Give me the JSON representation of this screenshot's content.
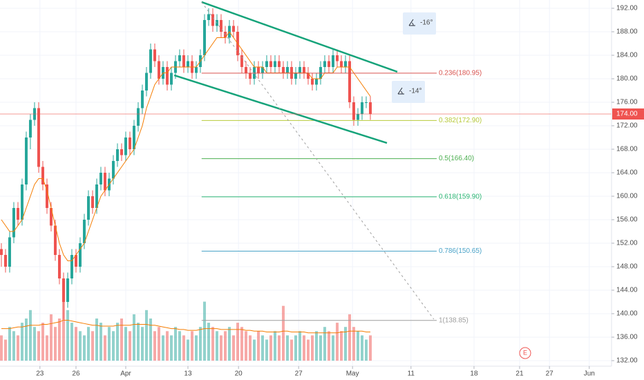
{
  "chart_data": {
    "type": "candlestick",
    "up_color": "#26a69a",
    "down_color": "#ef5350",
    "candles": [
      [
        151,
        152,
        148,
        150
      ],
      [
        150,
        151,
        147,
        148
      ],
      [
        148,
        154,
        147,
        153
      ],
      [
        153,
        159,
        152,
        158
      ],
      [
        158,
        159,
        155,
        156
      ],
      [
        156,
        163,
        155,
        162
      ],
      [
        162,
        171,
        161,
        170
      ],
      [
        170,
        174,
        168,
        173
      ],
      [
        173,
        176,
        172,
        175
      ],
      [
        175,
        176,
        164,
        165
      ],
      [
        165,
        166,
        161,
        162
      ],
      [
        162,
        163,
        157,
        158
      ],
      [
        158,
        159,
        154,
        155
      ],
      [
        155,
        156,
        149,
        150
      ],
      [
        150,
        151,
        145,
        146
      ],
      [
        146,
        147,
        139,
        142
      ],
      [
        142,
        147,
        141,
        146
      ],
      [
        146,
        151,
        145,
        150
      ],
      [
        150,
        151,
        147,
        148
      ],
      [
        148,
        153,
        147,
        152
      ],
      [
        152,
        157,
        151,
        156
      ],
      [
        156,
        161,
        155,
        160
      ],
      [
        160,
        161,
        157,
        158
      ],
      [
        158,
        163,
        157,
        162
      ],
      [
        162,
        165,
        161,
        164
      ],
      [
        164,
        165,
        160,
        161
      ],
      [
        161,
        164,
        160,
        163
      ],
      [
        163,
        167,
        162,
        166
      ],
      [
        166,
        169,
        165,
        168
      ],
      [
        168,
        169,
        166,
        167
      ],
      [
        167,
        171,
        166,
        170
      ],
      [
        170,
        171,
        167,
        168
      ],
      [
        168,
        173,
        167,
        172
      ],
      [
        172,
        176,
        171,
        175
      ],
      [
        175,
        179,
        174,
        178
      ],
      [
        178,
        182,
        177,
        181
      ],
      [
        181,
        186,
        180,
        185
      ],
      [
        185,
        186,
        182,
        183
      ],
      [
        183,
        184,
        179,
        180
      ],
      [
        180,
        183,
        179,
        182
      ],
      [
        182,
        183,
        178,
        179
      ],
      [
        179,
        182,
        178,
        181
      ],
      [
        181,
        184,
        180,
        183
      ],
      [
        183,
        185,
        182,
        184
      ],
      [
        184,
        185,
        181,
        182
      ],
      [
        182,
        184,
        181,
        183
      ],
      [
        183,
        184,
        180,
        181
      ],
      [
        181,
        183,
        180,
        182
      ],
      [
        182,
        185,
        181,
        184
      ],
      [
        184,
        191,
        183,
        190
      ],
      [
        190,
        192,
        189,
        191
      ],
      [
        191,
        192,
        188,
        189
      ],
      [
        189,
        191,
        188,
        190
      ],
      [
        190,
        191,
        187,
        188
      ],
      [
        188,
        189,
        186,
        187
      ],
      [
        187,
        190,
        186,
        189
      ],
      [
        189,
        190,
        187,
        188
      ],
      [
        188,
        189,
        183,
        184
      ],
      [
        184,
        185,
        181,
        182
      ],
      [
        182,
        183,
        180,
        181
      ],
      [
        181,
        182,
        179,
        180
      ],
      [
        180,
        183,
        179,
        182
      ],
      [
        182,
        183,
        180,
        181
      ],
      [
        181,
        183,
        180,
        182
      ],
      [
        182,
        184,
        181,
        183
      ],
      [
        183,
        184,
        181,
        182
      ],
      [
        182,
        184,
        181,
        183
      ],
      [
        183,
        184,
        181,
        182
      ],
      [
        182,
        183,
        180,
        181
      ],
      [
        181,
        183,
        180,
        182
      ],
      [
        182,
        183,
        179,
        180
      ],
      [
        180,
        182,
        179,
        181
      ],
      [
        181,
        183,
        180,
        182
      ],
      [
        182,
        183,
        180,
        181
      ],
      [
        181,
        182,
        179,
        180
      ],
      [
        180,
        181,
        178,
        179
      ],
      [
        179,
        181,
        178,
        180
      ],
      [
        180,
        183,
        179,
        182
      ],
      [
        182,
        184,
        181,
        183
      ],
      [
        183,
        184,
        181,
        182
      ],
      [
        182,
        185,
        181,
        184
      ],
      [
        184,
        185,
        182,
        183
      ],
      [
        183,
        184,
        181,
        182
      ],
      [
        182,
        184,
        181,
        183
      ],
      [
        183,
        184,
        175,
        176
      ],
      [
        176,
        177,
        172,
        173
      ],
      [
        173,
        175,
        172,
        174
      ],
      [
        174,
        177,
        173,
        176
      ],
      [
        176,
        177,
        175,
        176
      ],
      [
        176,
        177,
        173,
        174
      ]
    ],
    "ma": {
      "color": "#f57c00",
      "values": [
        156,
        155,
        154,
        154,
        155,
        156,
        158,
        160,
        162,
        163,
        163,
        161,
        158,
        155,
        152,
        150,
        149,
        149,
        150,
        151,
        152,
        154,
        156,
        158,
        160,
        161,
        162,
        163,
        164,
        165,
        166,
        167,
        168,
        170,
        172,
        175,
        177,
        179,
        180,
        181,
        181,
        182,
        182,
        182,
        182,
        182,
        182,
        182,
        183,
        184,
        185,
        186,
        187,
        187,
        187,
        188,
        187,
        186,
        185,
        184,
        183,
        182,
        182,
        182,
        181,
        181,
        181,
        181,
        181,
        181,
        181,
        181,
        181,
        181,
        181,
        180,
        180,
        180,
        181,
        181,
        181,
        182,
        182,
        182,
        182,
        181,
        180,
        179,
        178,
        177
      ]
    },
    "volume": {
      "ylim": [
        0,
        100
      ],
      "values": [
        30,
        25,
        40,
        35,
        30,
        45,
        50,
        60,
        40,
        35,
        45,
        30,
        55,
        40,
        50,
        90,
        60,
        45,
        40,
        35,
        30,
        40,
        35,
        50,
        45,
        30,
        40,
        35,
        45,
        50,
        40,
        35,
        55,
        45,
        40,
        60,
        50,
        35,
        40,
        30,
        35,
        30,
        40,
        35,
        30,
        25,
        35,
        30,
        40,
        70,
        45,
        40,
        35,
        30,
        35,
        40,
        30,
        45,
        40,
        35,
        30,
        25,
        35,
        30,
        25,
        30,
        35,
        30,
        65,
        30,
        25,
        30,
        35,
        30,
        25,
        30,
        35,
        30,
        40,
        35,
        30,
        45,
        35,
        40,
        55,
        40,
        35,
        30,
        25,
        30
      ]
    },
    "volume_ma": {
      "color": "#f57c00",
      "values": [
        38,
        38,
        38,
        39,
        40,
        40,
        41,
        42,
        42,
        42,
        43,
        43,
        44,
        45,
        46,
        48,
        48,
        47,
        46,
        45,
        44,
        43,
        42,
        42,
        41,
        41,
        41,
        41,
        42,
        42,
        42,
        42,
        43,
        43,
        43,
        43,
        42,
        42,
        41,
        40,
        39,
        38,
        38,
        37,
        37,
        36,
        36,
        36,
        37,
        38,
        38,
        38,
        38,
        37,
        37,
        37,
        37,
        37,
        37,
        36,
        36,
        35,
        35,
        35,
        34,
        34,
        34,
        34,
        35,
        35,
        34,
        34,
        34,
        34,
        33,
        33,
        33,
        33,
        33,
        33,
        33,
        33,
        34,
        34,
        35,
        35,
        35,
        35,
        34,
        34
      ]
    },
    "xlim": [
      -0.33,
      147.17
    ],
    "xticks": [
      {
        "value": 9.3,
        "label": "23"
      },
      {
        "value": 18,
        "label": "26"
      },
      {
        "value": 30,
        "label": "Apr"
      },
      {
        "value": 45,
        "label": "13"
      },
      {
        "value": 57.2,
        "label": "20"
      },
      {
        "value": 71.7,
        "label": "27"
      },
      {
        "value": 84.7,
        "label": "May"
      },
      {
        "value": 98.8,
        "label": "11"
      },
      {
        "value": 114,
        "label": "18"
      },
      {
        "value": 125,
        "label": "21"
      },
      {
        "value": 132.2,
        "label": "27"
      },
      {
        "value": 141.8,
        "label": "Jun"
      }
    ],
    "ylim": [
      131.06,
      193.41
    ],
    "yticks": [
      {
        "value": 192,
        "label": "192.00"
      },
      {
        "value": 188,
        "label": "188.00"
      },
      {
        "value": 184,
        "label": "184.00"
      },
      {
        "value": 180,
        "label": "180.00"
      },
      {
        "value": 176,
        "label": "176.00"
      },
      {
        "value": 172,
        "label": "172.00"
      },
      {
        "value": 168,
        "label": "168.00"
      },
      {
        "value": 164,
        "label": "164.00"
      },
      {
        "value": 160,
        "label": "160.00"
      },
      {
        "value": 156,
        "label": "156.00"
      },
      {
        "value": 152,
        "label": "152.00"
      },
      {
        "value": 148,
        "label": "148.00"
      },
      {
        "value": 144,
        "label": "144.00"
      },
      {
        "value": 140,
        "label": "140.00"
      },
      {
        "value": 136,
        "label": "136.00"
      },
      {
        "value": 132,
        "label": "132.00"
      }
    ],
    "grid": true,
    "last_price": {
      "value": 174,
      "label": "174.00",
      "color": "#ef5350"
    },
    "fib_levels": {
      "x": [
        48.3,
        105
      ],
      "levels": [
        {
          "value": 180.95,
          "label": "0.236(180.95)",
          "color": "#d9534f"
        },
        {
          "value": 172.9,
          "label": "0.382(172.90)",
          "color": "#b7c93a"
        },
        {
          "value": 166.4,
          "label": "0.5(166.40)",
          "color": "#4caf50"
        },
        {
          "value": 159.9,
          "label": "0.618(159.90)",
          "color": "#2bb673"
        },
        {
          "value": 150.65,
          "label": "0.786(150.65)",
          "color": "#4aa3c8"
        },
        {
          "value": 138.85,
          "label": "1(138.85)",
          "color": "#9e9e9e"
        }
      ]
    },
    "trend_lines": [
      {
        "color": "#16a37a",
        "x": [
          48.3,
          95.5
        ],
        "y": [
          193.06,
          181.18
        ]
      },
      {
        "color": "#16a37a",
        "x": [
          41.7,
          93
        ],
        "y": [
          180.59,
          169.06
        ]
      }
    ],
    "dashed_line": {
      "color": "#9e9e9e",
      "x": [
        48.3,
        104.3
      ],
      "y": [
        193.06,
        139.06
      ]
    },
    "angle_labels": [
      "-16°",
      "-14°"
    ],
    "earnings": "E"
  }
}
